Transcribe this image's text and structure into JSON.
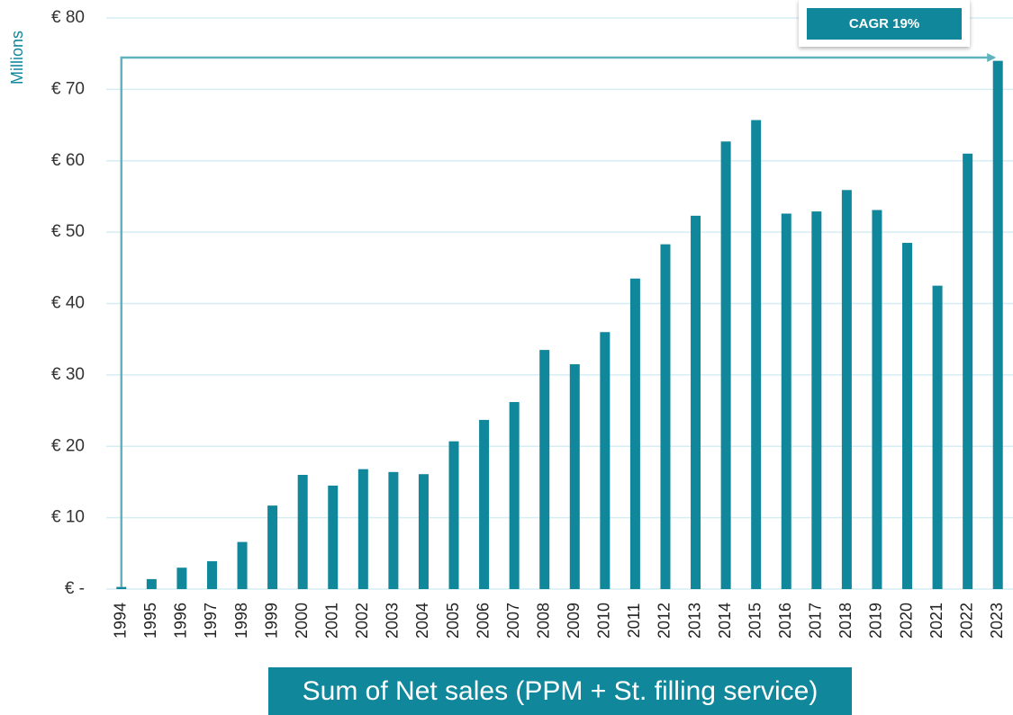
{
  "chart_data": {
    "type": "bar",
    "title": "Sum of Net sales (PPM + St. filling service)",
    "y_axis_label": "Millions",
    "annotation": "CAGR 19%",
    "color": "#11879b",
    "categories": [
      "1994",
      "1995",
      "1996",
      "1997",
      "1998",
      "1999",
      "2000",
      "2001",
      "2002",
      "2003",
      "2004",
      "2005",
      "2006",
      "2007",
      "2008",
      "2009",
      "2010",
      "2011",
      "2012",
      "2013",
      "2014",
      "2015",
      "2016",
      "2017",
      "2018",
      "2019",
      "2020",
      "2021",
      "2022",
      "2023"
    ],
    "values": [
      0.3,
      1.4,
      3.0,
      3.9,
      6.6,
      11.7,
      16.0,
      14.5,
      16.8,
      16.4,
      16.1,
      20.7,
      23.7,
      26.2,
      33.5,
      31.5,
      36.0,
      43.5,
      48.3,
      52.3,
      62.7,
      65.7,
      52.6,
      52.9,
      55.9,
      53.1,
      48.5,
      42.5,
      61.0,
      74.0
    ],
    "ylim": [
      0,
      80
    ],
    "yticks": [
      {
        "value": 0,
        "label": "€ -"
      },
      {
        "value": 10,
        "label": "€ 10"
      },
      {
        "value": 20,
        "label": "€ 20"
      },
      {
        "value": 30,
        "label": "€ 30"
      },
      {
        "value": 40,
        "label": "€ 40"
      },
      {
        "value": 50,
        "label": "€ 50"
      },
      {
        "value": 60,
        "label": "€ 60"
      },
      {
        "value": 70,
        "label": "€ 70"
      },
      {
        "value": 80,
        "label": "€ 80"
      }
    ],
    "grid": true
  }
}
